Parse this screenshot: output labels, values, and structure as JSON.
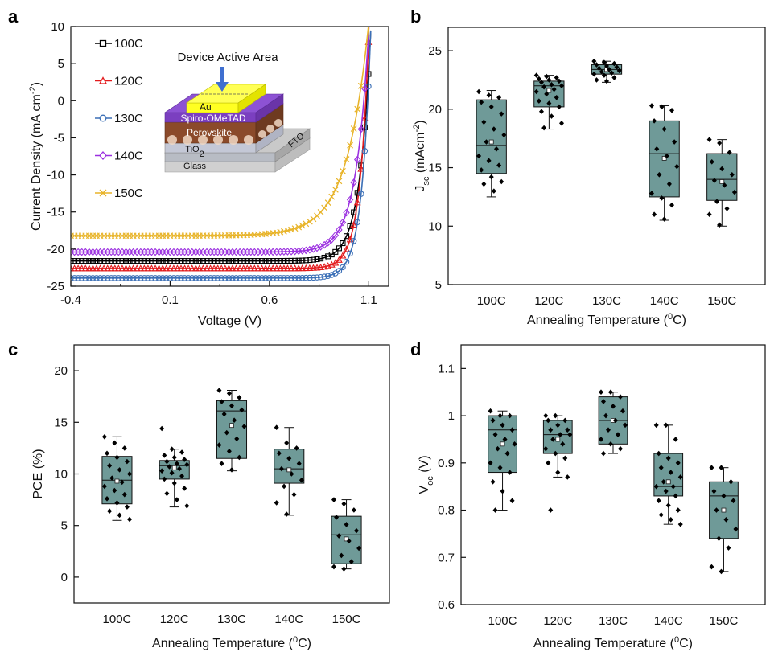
{
  "panel_letters": [
    "a",
    "b",
    "c",
    "d"
  ],
  "chart_data": [
    {
      "panel": "a",
      "type": "line",
      "xlabel": "Voltage (V)",
      "ylabel": "Current Density (mA cm",
      "ylabel_sup": "-2",
      "ylabel_end": ")",
      "xlim": [
        -0.4,
        1.2
      ],
      "ylim": [
        -25,
        10
      ],
      "xticks": [
        -0.4,
        0.1,
        0.6,
        1.1
      ],
      "xtick_labels": [
        "-0.4",
        "0.1",
        "0.6",
        "1.1"
      ],
      "yticks": [
        10,
        5,
        0,
        -5,
        -10,
        -15,
        -20,
        -25
      ],
      "series": [
        {
          "name": "100C",
          "color": "#000000",
          "marker": "square",
          "jsc": -21.6,
          "voc": 1.09,
          "knee": 0.055
        },
        {
          "name": "120C",
          "color": "#e31a1c",
          "marker": "triangle",
          "jsc": -22.6,
          "voc": 1.085,
          "knee": 0.045
        },
        {
          "name": "130C",
          "color": "#3b6fb6",
          "marker": "circle",
          "jsc": -23.9,
          "voc": 1.095,
          "knee": 0.045
        },
        {
          "name": "140C",
          "color": "#9b30e0",
          "marker": "diamond",
          "jsc": -20.4,
          "voc": 1.075,
          "knee": 0.065
        },
        {
          "name": "150C",
          "color": "#e8b42a",
          "marker": "x",
          "jsc": -18.2,
          "voc": 1.05,
          "knee": 0.11
        }
      ],
      "inset": {
        "title": "Device Active Area",
        "layers": [
          "Au",
          "Spiro-OMeTAD",
          "Perovskite",
          "TiO",
          "Glass",
          "FTO"
        ],
        "tio_sub": "2"
      }
    },
    {
      "panel": "b",
      "type": "box",
      "xlabel": "Annealing Temperature (",
      "xlabel_sup": "0",
      "xlabel_end": "C)",
      "ylabel": "J",
      "ylabel_sub": "sc",
      "ylabel_end": " (mAcm",
      "ylabel_sup": "-2",
      "ylabel_close": ")",
      "ylim": [
        5,
        27
      ],
      "yticks": [
        5,
        10,
        15,
        20,
        25
      ],
      "categories": [
        "100C",
        "120C",
        "130C",
        "140C",
        "150C"
      ],
      "boxes": [
        {
          "min": 12.5,
          "q1": 14.5,
          "median": 16.9,
          "q3": 20.8,
          "max": 21.6,
          "mean": 17.2,
          "points": [
            21.5,
            21.2,
            21.0,
            20.6,
            20.2,
            19.6,
            18.9,
            18.3,
            17.8,
            17.2,
            16.6,
            16.0,
            15.6,
            15.2,
            14.8,
            14.2,
            13.8,
            13.6,
            13.0
          ]
        },
        {
          "min": 18.3,
          "q1": 20.2,
          "median": 22.0,
          "q3": 22.4,
          "max": 22.9,
          "mean": 21.6,
          "points": [
            22.9,
            22.8,
            22.7,
            22.6,
            22.5,
            22.4,
            22.3,
            22.1,
            22.0,
            21.9,
            21.7,
            21.5,
            21.3,
            21.0,
            20.7,
            20.5,
            20.2,
            19.8,
            19.4,
            18.8,
            18.4
          ]
        },
        {
          "min": 22.3,
          "q1": 23.0,
          "median": 23.4,
          "q3": 23.8,
          "max": 24.1,
          "mean": 23.4,
          "points": [
            24.1,
            24.0,
            23.9,
            23.8,
            23.7,
            23.6,
            23.5,
            23.4,
            23.3,
            23.2,
            23.1,
            23.0,
            22.9,
            22.7,
            22.5,
            22.4
          ]
        },
        {
          "min": 10.5,
          "q1": 12.5,
          "median": 16.2,
          "q3": 19.0,
          "max": 20.3,
          "mean": 15.8,
          "points": [
            20.3,
            20.2,
            19.9,
            19.0,
            18.3,
            17.2,
            16.6,
            16.0,
            15.1,
            14.4,
            13.6,
            12.8,
            12.4,
            11.8,
            11.0,
            10.6
          ]
        },
        {
          "min": 10.0,
          "q1": 12.2,
          "median": 14.0,
          "q3": 16.2,
          "max": 17.4,
          "mean": 13.8,
          "points": [
            17.4,
            17.1,
            16.3,
            15.5,
            14.9,
            14.4,
            13.9,
            13.5,
            12.9,
            12.1,
            11.5,
            11.0,
            10.1
          ]
        }
      ]
    },
    {
      "panel": "c",
      "type": "box",
      "xlabel": "Annealing Temperature (",
      "xlabel_sup": "0",
      "xlabel_end": "C)",
      "ylabel": "PCE (%)",
      "ylim": [
        -2.5,
        22.5
      ],
      "yticks": [
        0,
        5,
        10,
        15,
        20
      ],
      "categories": [
        "100C",
        "120C",
        "130C",
        "140C",
        "150C"
      ],
      "boxes": [
        {
          "min": 5.5,
          "q1": 7.1,
          "median": 9.4,
          "q3": 11.7,
          "max": 13.6,
          "mean": 9.3,
          "points": [
            13.6,
            13.0,
            12.5,
            12.0,
            11.6,
            11.2,
            10.8,
            10.4,
            10.0,
            9.6,
            9.2,
            8.8,
            8.4,
            8.0,
            7.6,
            7.2,
            6.8,
            6.4,
            6.0,
            5.6
          ]
        },
        {
          "min": 6.8,
          "q1": 9.5,
          "median": 10.8,
          "q3": 11.3,
          "max": 12.4,
          "mean": 10.6,
          "points": [
            14.4,
            12.4,
            12.1,
            11.8,
            11.6,
            11.4,
            11.2,
            11.0,
            10.9,
            10.7,
            10.5,
            10.3,
            10.1,
            9.8,
            9.5,
            9.1,
            8.6,
            8.1,
            7.5,
            6.9
          ]
        },
        {
          "min": 10.3,
          "q1": 11.5,
          "median": 16.1,
          "q3": 17.1,
          "max": 18.1,
          "mean": 14.7,
          "points": [
            18.1,
            17.8,
            17.4,
            17.0,
            16.6,
            16.2,
            15.8,
            15.2,
            14.6,
            14.0,
            13.4,
            12.8,
            12.2,
            11.6,
            11.0,
            10.4
          ]
        },
        {
          "min": 6.0,
          "q1": 9.1,
          "median": 10.5,
          "q3": 12.4,
          "max": 14.5,
          "mean": 10.4,
          "points": [
            14.5,
            13.0,
            12.5,
            12.0,
            11.5,
            11.0,
            10.5,
            10.0,
            9.4,
            8.8,
            8.0,
            7.2,
            6.1
          ]
        },
        {
          "min": 0.8,
          "q1": 1.3,
          "median": 4.1,
          "q3": 5.9,
          "max": 7.5,
          "mean": 3.7,
          "points": [
            7.5,
            7.1,
            6.5,
            5.8,
            5.1,
            4.5,
            4.0,
            3.5,
            2.8,
            2.1,
            1.5,
            1.0,
            0.8
          ]
        }
      ]
    },
    {
      "panel": "d",
      "type": "box",
      "xlabel": "Annealing Temperature (",
      "xlabel_sup": "0",
      "xlabel_end": "C)",
      "ylabel": "V",
      "ylabel_sub": "oc",
      "ylabel_end": " (V)",
      "ylim": [
        0.6,
        1.15
      ],
      "yticks": [
        0.6,
        0.7,
        0.8,
        0.9,
        1.0,
        1.1
      ],
      "ytick_labels": [
        "0.6",
        "0.7",
        "0.8",
        "0.9",
        "1",
        "1.1"
      ],
      "categories": [
        "100C",
        "120C",
        "130C",
        "140C",
        "150C"
      ],
      "boxes": [
        {
          "min": 0.8,
          "q1": 0.88,
          "median": 0.97,
          "q3": 1.0,
          "max": 1.01,
          "mean": 0.94,
          "points": [
            1.01,
            1.0,
            1.0,
            0.99,
            0.98,
            0.97,
            0.96,
            0.95,
            0.94,
            0.93,
            0.92,
            0.9,
            0.89,
            0.88,
            0.86,
            0.84,
            0.82,
            0.8
          ]
        },
        {
          "min": 0.87,
          "q1": 0.92,
          "median": 0.96,
          "q3": 0.99,
          "max": 1.0,
          "mean": 0.95,
          "points": [
            1.0,
            1.0,
            0.99,
            0.99,
            0.98,
            0.97,
            0.97,
            0.96,
            0.96,
            0.95,
            0.94,
            0.93,
            0.92,
            0.91,
            0.9,
            0.88,
            0.87,
            0.8
          ]
        },
        {
          "min": 0.92,
          "q1": 0.94,
          "median": 0.99,
          "q3": 1.04,
          "max": 1.05,
          "mean": 0.99,
          "points": [
            1.05,
            1.05,
            1.04,
            1.03,
            1.02,
            1.01,
            1.0,
            0.99,
            0.98,
            0.97,
            0.96,
            0.95,
            0.94,
            0.93,
            0.92
          ]
        },
        {
          "min": 0.77,
          "q1": 0.83,
          "median": 0.85,
          "q3": 0.92,
          "max": 0.98,
          "mean": 0.86,
          "points": [
            0.98,
            0.98,
            0.95,
            0.92,
            0.91,
            0.9,
            0.89,
            0.88,
            0.87,
            0.86,
            0.85,
            0.85,
            0.84,
            0.83,
            0.82,
            0.81,
            0.8,
            0.79,
            0.78,
            0.77
          ]
        },
        {
          "min": 0.67,
          "q1": 0.74,
          "median": 0.83,
          "q3": 0.86,
          "max": 0.89,
          "mean": 0.8,
          "points": [
            0.89,
            0.89,
            0.86,
            0.84,
            0.83,
            0.82,
            0.8,
            0.78,
            0.76,
            0.74,
            0.72,
            0.68,
            0.67
          ]
        }
      ]
    }
  ]
}
